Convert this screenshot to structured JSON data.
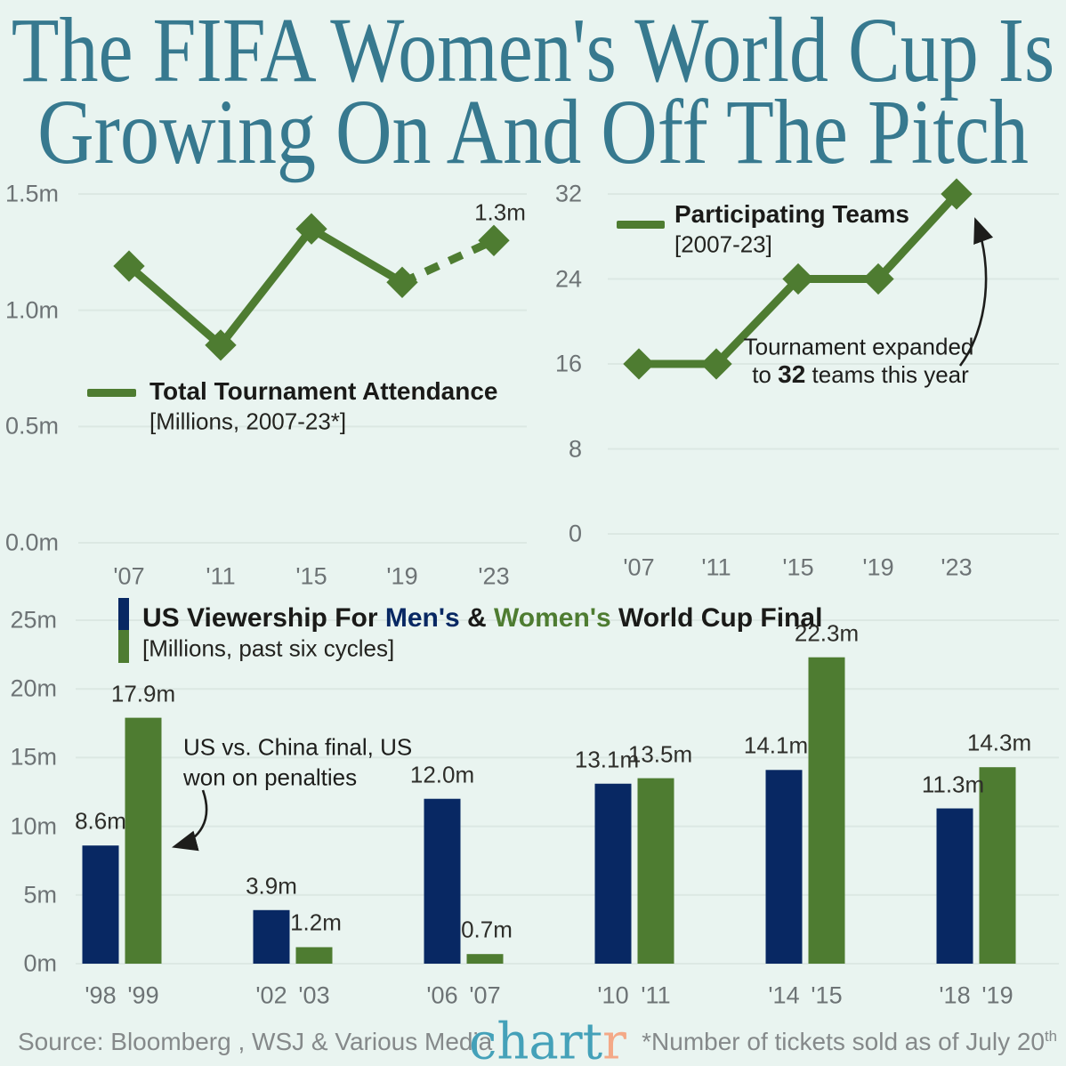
{
  "title": {
    "line1": "The FIFA Women's World Cup Is",
    "line2": "Growing On And Off The Pitch"
  },
  "colors": {
    "background": "#e9f4f0",
    "title_teal": "#37798f",
    "green": "#4e7c31",
    "navy": "#082863",
    "axis_gray": "#6d7375",
    "text_dark": "#1d1d1b",
    "gridline": "#dce8e3",
    "logo_teal": "#44a1b9",
    "logo_orange": "#f4a987",
    "footer_gray": "#85898a"
  },
  "chart_data": [
    {
      "id": "attendance",
      "type": "line",
      "title": "Total Tournament Attendance",
      "subtitle": "[Millions, 2007-23*]",
      "x": [
        "'07",
        "'11",
        "'15",
        "'19",
        "'23"
      ],
      "values": [
        1.19,
        0.85,
        1.35,
        1.12,
        1.3
      ],
      "ylim": [
        0,
        1.5
      ],
      "yticks": [
        {
          "v": 0,
          "label": "0.0m"
        },
        {
          "v": 0.5,
          "label": "0.5m"
        },
        {
          "v": 1,
          "label": "1.0m"
        },
        {
          "v": 1.5,
          "label": "1.5m"
        }
      ],
      "grid": true,
      "dashed_last_segment": true,
      "point_label": "1.3m",
      "legend_position": "inside-bottom-left"
    },
    {
      "id": "teams",
      "type": "line",
      "title": "Participating Teams",
      "subtitle": "[2007-23]",
      "x": [
        "'07",
        "'11",
        "'15",
        "'19",
        "'23"
      ],
      "values": [
        16,
        16,
        24,
        24,
        32
      ],
      "ylim": [
        0,
        32
      ],
      "yticks": [
        {
          "v": 0,
          "label": "0"
        },
        {
          "v": 8,
          "label": "8"
        },
        {
          "v": 16,
          "label": "16"
        },
        {
          "v": 24,
          "label": "24"
        },
        {
          "v": 32,
          "label": "32"
        }
      ],
      "grid": true,
      "annotation": {
        "line1": "Tournament expanded",
        "line2_pre": "to ",
        "line2_bold": "32",
        "line2_post": " teams this year"
      },
      "legend_position": "inside-top-left"
    },
    {
      "id": "viewership",
      "type": "bar",
      "title_parts": {
        "pre": "US Viewership For ",
        "mens": "Men's",
        "amp": " & ",
        "womens": "Women's",
        "post": " World Cup Final"
      },
      "subtitle": "[Millions, past six cycles]",
      "series": [
        {
          "name": "Men's",
          "color_key": "navy"
        },
        {
          "name": "Women's",
          "color_key": "green"
        }
      ],
      "ylim": [
        0,
        25
      ],
      "yticks": [
        {
          "v": 0,
          "label": "0m"
        },
        {
          "v": 5,
          "label": "5m"
        },
        {
          "v": 10,
          "label": "10m"
        },
        {
          "v": 15,
          "label": "15m"
        },
        {
          "v": 20,
          "label": "20m"
        },
        {
          "v": 25,
          "label": "25m"
        }
      ],
      "grid": true,
      "groups": [
        {
          "men_year": "'98",
          "men_value": 8.6,
          "men_label": "8.6m",
          "women_year": "'99",
          "women_value": 17.9,
          "women_label": "17.9m"
        },
        {
          "men_year": "'02",
          "men_value": 3.9,
          "men_label": "3.9m",
          "women_year": "'03",
          "women_value": 1.2,
          "women_label": "1.2m"
        },
        {
          "men_year": "'06",
          "men_value": 12.0,
          "men_label": "12.0m",
          "women_year": "'07",
          "women_value": 0.7,
          "women_label": "0.7m"
        },
        {
          "men_year": "'10",
          "men_value": 13.1,
          "men_label": "13.1m",
          "women_year": "'11",
          "women_value": 13.5,
          "women_label": "13.5m"
        },
        {
          "men_year": "'14",
          "men_value": 14.1,
          "men_label": "14.1m",
          "women_year": "'15",
          "women_value": 22.3,
          "women_label": "22.3m"
        },
        {
          "men_year": "'18",
          "men_value": 11.3,
          "men_label": "11.3m",
          "women_year": "'19",
          "women_value": 14.3,
          "women_label": "14.3m"
        }
      ],
      "annotation": {
        "line1": "US vs. China final, US",
        "line2": "won on penalties"
      }
    }
  ],
  "footer": {
    "source": "Source: Bloomberg , WSJ & Various Media",
    "logo_teal": "chart",
    "logo_orange": "r",
    "footnote": "*Number of tickets sold as of July 20",
    "footnote_sup": "th"
  }
}
